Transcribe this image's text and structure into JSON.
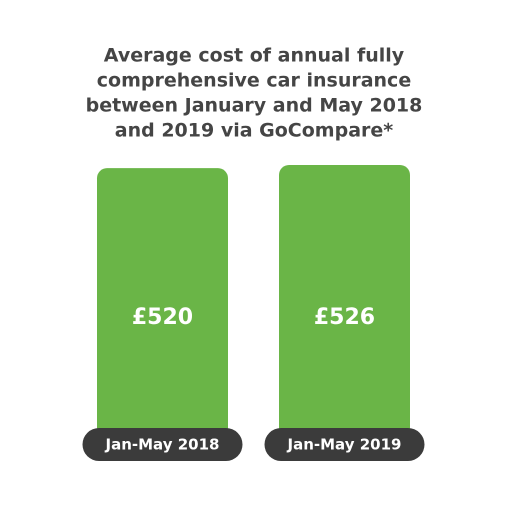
{
  "chart_data": {
    "type": "bar",
    "title": [
      "Average cost of annual fully",
      "comprehensive car insurance",
      "between January and May 2018",
      "and 2019 via GoCompare*"
    ],
    "categories": [
      "Jan-May 2018",
      "Jan-May 2019"
    ],
    "values": [
      520,
      526
    ],
    "value_labels": [
      "£520",
      "£526"
    ],
    "color": "#6ab547"
  }
}
